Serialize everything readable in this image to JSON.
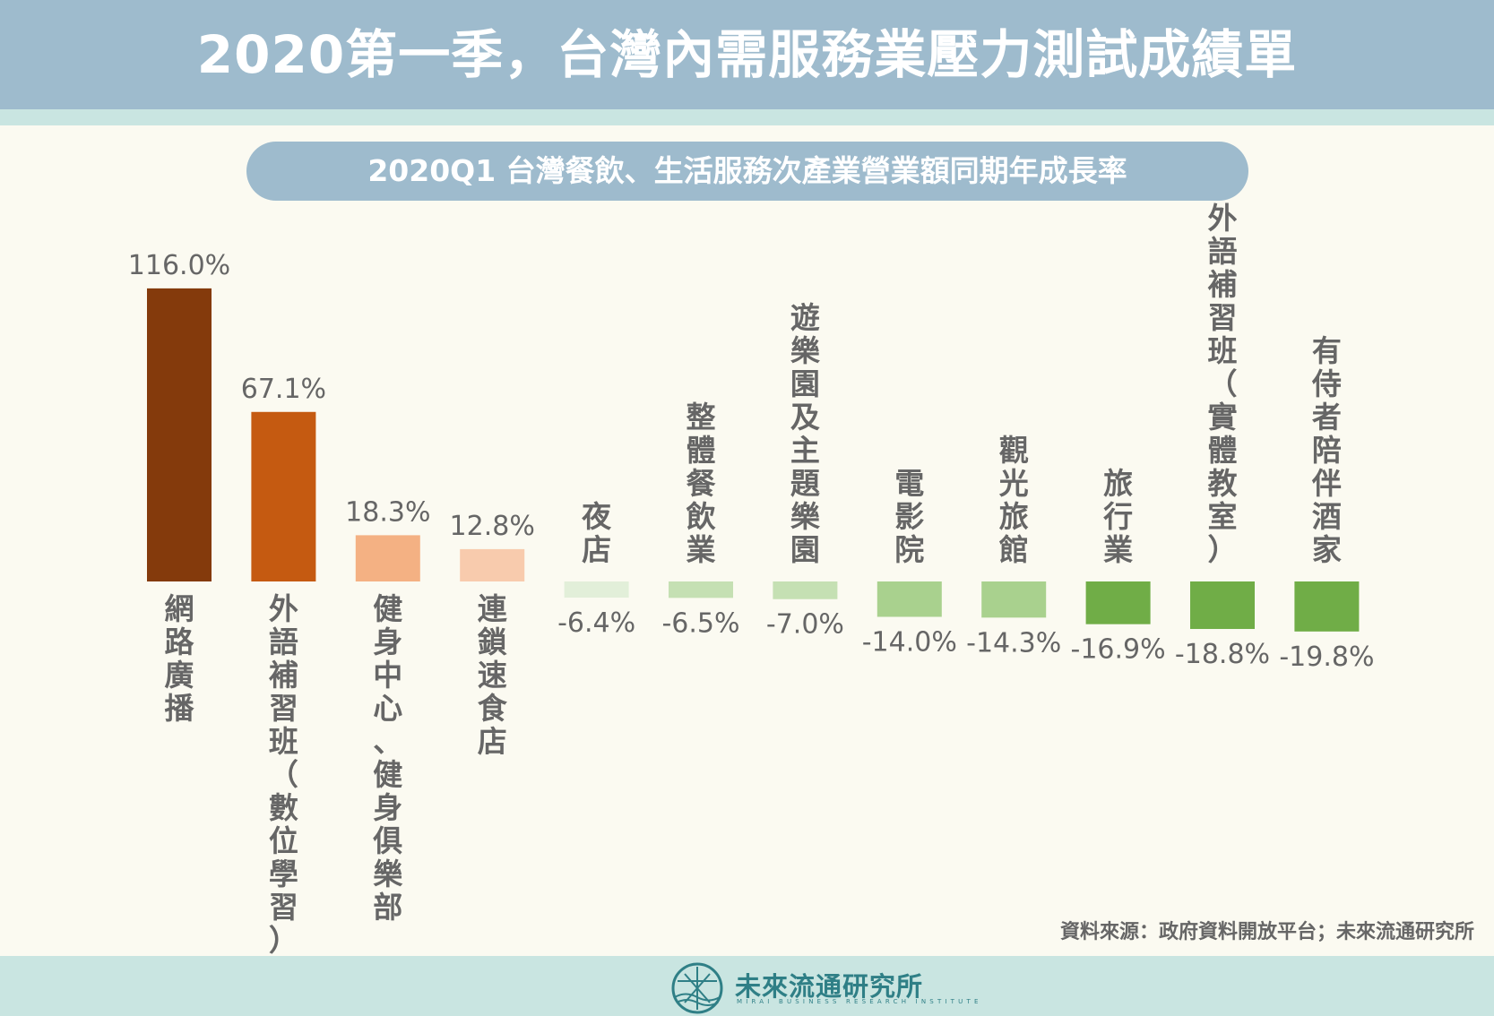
{
  "title": "2020第一季，台灣內需服務業壓力測試成績單",
  "source_note": "資料來源：政府資料開放平台；未來流通研究所",
  "logo": {
    "name": "未來流通研究所",
    "tagline": "MIRAI BUSINESS RESEARCH INSTITUTE"
  },
  "colors": {
    "header": "#9ebbcd",
    "stripe": "#c9e5e1",
    "label_text": "#666666"
  },
  "chart_data": {
    "type": "bar",
    "title": "2020Q1  台灣餐飲、生活服務次產業營業額同期年成長率",
    "unit": "%",
    "categories": [
      "網路廣播",
      "外語補習班（數位學習）",
      "健身中心、健身俱樂部",
      "連鎖速食店",
      "夜店",
      "整體餐飲業",
      "遊樂園及主題樂園",
      "電影院",
      "觀光旅館",
      "旅行業",
      "外語補習班（實體教室）",
      "有侍者陪伴酒家"
    ],
    "values": [
      116.0,
      67.1,
      18.3,
      12.8,
      -6.4,
      -6.5,
      -7.0,
      -14.0,
      -14.3,
      -16.9,
      -18.8,
      -19.8
    ],
    "value_labels": [
      "116.0%",
      "67.1%",
      "18.3%",
      "12.8%",
      "-6.4%",
      "-6.5%",
      "-7.0%",
      "-14.0%",
      "-14.3%",
      "-16.9%",
      "-18.8%",
      "-19.8%"
    ],
    "colors": [
      "#843a0c",
      "#c55a11",
      "#f4b183",
      "#f8cbad",
      "#e2efd9",
      "#c5e0b3",
      "#c5e0b3",
      "#a9d18e",
      "#a9d18e",
      "#70ad47",
      "#70ad47",
      "#70ad47"
    ],
    "xlabel": "",
    "ylabel": "",
    "grid": false,
    "legend": false
  }
}
